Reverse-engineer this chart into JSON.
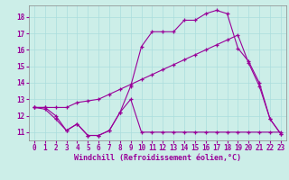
{
  "xlabel": "Windchill (Refroidissement éolien,°C)",
  "bg_color": "#cceee8",
  "line_color": "#990099",
  "xlim": [
    -0.5,
    23.5
  ],
  "ylim": [
    10.5,
    18.7
  ],
  "yticks": [
    11,
    12,
    13,
    14,
    15,
    16,
    17,
    18
  ],
  "xticks": [
    0,
    1,
    2,
    3,
    4,
    5,
    6,
    7,
    8,
    9,
    10,
    11,
    12,
    13,
    14,
    15,
    16,
    17,
    18,
    19,
    20,
    21,
    22,
    23
  ],
  "series1_x": [
    0,
    1,
    2,
    3,
    4,
    5,
    6,
    7,
    8,
    9,
    10,
    11,
    12,
    13,
    14,
    15,
    16,
    17,
    18,
    19,
    20,
    21,
    22,
    23
  ],
  "series1_y": [
    12.5,
    12.4,
    11.8,
    11.1,
    11.5,
    10.8,
    10.8,
    11.1,
    12.2,
    13.0,
    11.0,
    11.0,
    11.0,
    11.0,
    11.0,
    11.0,
    11.0,
    11.0,
    11.0,
    11.0,
    11.0,
    11.0,
    11.0,
    11.0
  ],
  "series2_x": [
    0,
    1,
    2,
    3,
    4,
    5,
    6,
    7,
    8,
    9,
    10,
    11,
    12,
    13,
    14,
    15,
    16,
    17,
    18,
    19,
    20,
    21,
    22,
    23
  ],
  "series2_y": [
    12.5,
    12.5,
    12.5,
    12.5,
    12.8,
    12.9,
    13.0,
    13.3,
    13.6,
    13.9,
    14.2,
    14.5,
    14.8,
    15.1,
    15.4,
    15.7,
    16.0,
    16.3,
    16.6,
    16.9,
    15.2,
    13.8,
    11.8,
    10.9
  ],
  "series3_x": [
    0,
    1,
    2,
    3,
    4,
    5,
    6,
    7,
    8,
    9,
    10,
    11,
    12,
    13,
    14,
    15,
    16,
    17,
    18,
    19,
    20,
    21,
    22,
    23
  ],
  "series3_y": [
    12.5,
    12.5,
    12.0,
    11.1,
    11.5,
    10.8,
    10.8,
    11.1,
    12.2,
    13.8,
    16.2,
    17.1,
    17.1,
    17.1,
    17.8,
    17.8,
    18.2,
    18.4,
    18.2,
    16.1,
    15.3,
    14.0,
    11.8,
    10.9
  ],
  "grid_color": "#aadddd",
  "tick_color": "#990099",
  "xlabel_fontsize": 6,
  "tick_fontsize": 5.5
}
